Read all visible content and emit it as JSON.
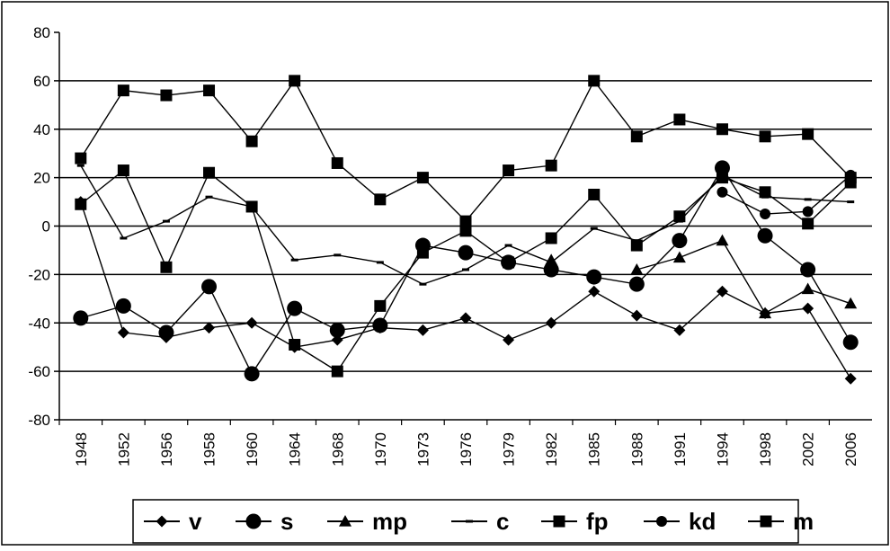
{
  "chart_data": {
    "type": "line",
    "title": "",
    "xlabel": "",
    "ylabel": "",
    "categories": [
      "1948",
      "1952",
      "1956",
      "1958",
      "1960",
      "1964",
      "1968",
      "1970",
      "1973",
      "1976",
      "1979",
      "1982",
      "1985",
      "1988",
      "1991",
      "1994",
      "1998",
      "2002",
      "2006"
    ],
    "ylim": [
      -80,
      80
    ],
    "yticks": [
      -80,
      -60,
      -40,
      -20,
      0,
      20,
      40,
      60,
      80
    ],
    "grid": "horizontal",
    "legend_position": "bottom",
    "series": [
      {
        "name": "v",
        "marker": "diamond",
        "values": [
          10,
          -44,
          -46,
          -42,
          -40,
          -50,
          -47,
          -42,
          -43,
          -38,
          -47,
          -40,
          -27,
          -37,
          -43,
          -27,
          -36,
          -34,
          -63
        ]
      },
      {
        "name": "s",
        "marker": "circle-large",
        "values": [
          -38,
          -33,
          -44,
          -25,
          -61,
          -34,
          -43,
          -41,
          -8,
          -11,
          -15,
          -18,
          -21,
          -24,
          -6,
          24,
          -4,
          -18,
          -48
        ]
      },
      {
        "name": "mp",
        "marker": "triangle",
        "values": [
          null,
          null,
          null,
          null,
          null,
          null,
          null,
          null,
          null,
          null,
          null,
          -14,
          null,
          -18,
          -13,
          -6,
          -36,
          -26,
          -32
        ]
      },
      {
        "name": "c",
        "marker": "dash",
        "values": [
          25,
          -5,
          2,
          12,
          8,
          -14,
          -12,
          -15,
          -24,
          -18,
          -8,
          -15,
          -1,
          -6,
          2,
          21,
          12,
          11,
          10
        ]
      },
      {
        "name": "fp",
        "marker": "square",
        "values": [
          9,
          23,
          -17,
          22,
          8,
          -49,
          -60,
          -33,
          -11,
          -2,
          -15,
          -5,
          13,
          -8,
          4,
          20,
          14,
          1,
          18
        ]
      },
      {
        "name": "kd",
        "marker": "circle-small",
        "values": [
          null,
          null,
          null,
          null,
          null,
          null,
          null,
          null,
          null,
          null,
          null,
          null,
          null,
          null,
          null,
          14,
          5,
          6,
          21
        ]
      },
      {
        "name": "m",
        "marker": "square",
        "values": [
          28,
          56,
          54,
          56,
          35,
          60,
          26,
          11,
          20,
          2,
          23,
          25,
          60,
          37,
          44,
          40,
          37,
          38,
          20
        ]
      }
    ]
  }
}
